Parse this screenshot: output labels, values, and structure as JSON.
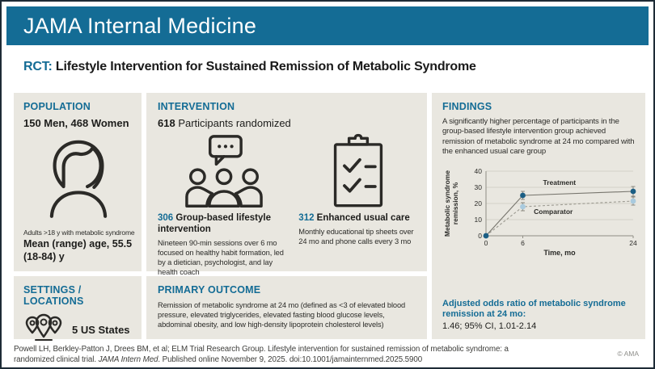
{
  "header": {
    "journal": "JAMA Internal Medicine"
  },
  "title": {
    "tag": "RCT:",
    "text": " Lifestyle Intervention for Sustained Remission of Metabolic Syndrome"
  },
  "population": {
    "heading": "POPULATION",
    "summary": "150 Men, 468 Women",
    "note": "Adults >18 y with metabolic syndrome",
    "age": "Mean (range) age, 55.5 (18-84) y"
  },
  "intervention": {
    "heading": "INTERVENTION",
    "count": "618",
    "count_label": " Participants randomized",
    "arms": [
      {
        "n": "306",
        "name": " Group-based lifestyle intervention",
        "description": "Nineteen 90-min sessions over 6 mo focused on healthy habit formation, led by a dietician, psychologist, and lay health coach"
      },
      {
        "n": "312",
        "name": " Enhanced usual care",
        "description": "Monthly educational tip sheets over 24 mo and phone calls every 3 mo"
      }
    ]
  },
  "settings": {
    "heading": "SETTINGS / LOCATIONS",
    "value": "5 US States"
  },
  "primary_outcome": {
    "heading": "PRIMARY OUTCOME",
    "text": "Remission of metabolic syndrome at 24 mo (defined as <3 of elevated blood pressure, elevated triglycerides, elevated fasting blood glucose levels, abdominal obesity, and low high-density lipoprotein cholesterol levels)"
  },
  "findings": {
    "heading": "FINDINGS",
    "text": "A significantly higher percentage of participants in the group-based lifestyle intervention group achieved remission of metabolic syndrome at 24 mo compared with the enhanced usual care group",
    "odds_label": "Adjusted odds ratio of metabolic syndrome remission at 24 mo:",
    "odds_value": "1.46; 95% CI, 1.01-2.14"
  },
  "chart_data": {
    "type": "line",
    "x": [
      0,
      6,
      24
    ],
    "xlabel": "Time, mo",
    "ylabel_line1": "Metabolic syndrome",
    "ylabel_line2": "remission, %",
    "xlim": [
      0,
      24
    ],
    "ylim": [
      0,
      40
    ],
    "xticks": [
      0,
      6,
      24
    ],
    "yticks": [
      0,
      10,
      20,
      30,
      40
    ],
    "grid": true,
    "legend_position": "inline-labels",
    "series": [
      {
        "name": "Treatment",
        "values": [
          0,
          25,
          27.5
        ],
        "errors": [
          0,
          2.5,
          3
        ],
        "marker_color": "#1b5e84",
        "line_color": "#77756d",
        "dashed": false,
        "label_at": [
          9.3,
          31.5
        ]
      },
      {
        "name": "Comparator",
        "values": [
          0,
          18,
          21.5
        ],
        "errors": [
          0,
          2.5,
          2.5
        ],
        "marker_color": "#a9cade",
        "line_color": "#9b9990",
        "dashed": true,
        "label_at": [
          7.8,
          13.5
        ]
      }
    ]
  },
  "footer": {
    "citation_part1": "Powell LH, Berkley-Patton J, Drees BM, et al; ELM Trial Research Group. Lifestyle intervention for sustained remission of metabolic syndrome: a randomized clinical trial. ",
    "citation_italic": "JAMA Intern Med",
    "citation_part2": ". Published online November 9, 2025. doi:10.1001/jamainternmed.2025.5900",
    "copyright": "© AMA"
  },
  "colors": {
    "header_bar": "#146c95",
    "accent_teal": "#146c95",
    "panel_background": "#e9e7e0",
    "border": "#1d2b36",
    "treatment_point": "#1b5e84",
    "comparator_point": "#a9cade",
    "text": "#1d1d1b"
  }
}
